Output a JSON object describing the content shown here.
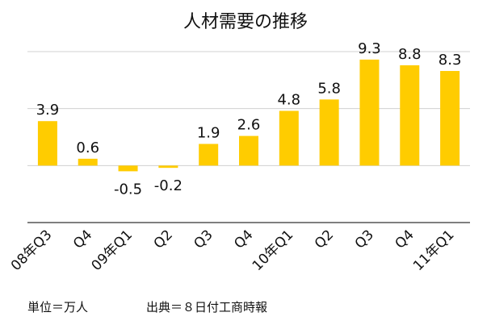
{
  "chart_data": {
    "type": "bar",
    "title": "人材需要の推移",
    "categories": [
      "08年Q3",
      "Q4",
      "09年Q1",
      "Q2",
      "Q3",
      "Q4",
      "10年Q1",
      "Q2",
      "Q3",
      "Q4",
      "11年Q1"
    ],
    "values": [
      3.9,
      0.6,
      -0.5,
      -0.2,
      1.9,
      2.6,
      4.8,
      5.8,
      9.3,
      8.8,
      8.3
    ],
    "value_labels": [
      "3.9",
      "0.6",
      "-0.5",
      "-0.2",
      "1.9",
      "2.6",
      "4.8",
      "5.8",
      "9.3",
      "8.8",
      "8.3"
    ],
    "xlabel": "",
    "ylabel": "",
    "ylim": [
      -5,
      10
    ],
    "grid": true,
    "legend": "none",
    "bar_color": "#FFCC00",
    "grid_color": "#d0d0d0",
    "axis_color": "#555555"
  },
  "footer": {
    "unit": "単位＝万人",
    "source": "出典＝８日付工商時報"
  }
}
